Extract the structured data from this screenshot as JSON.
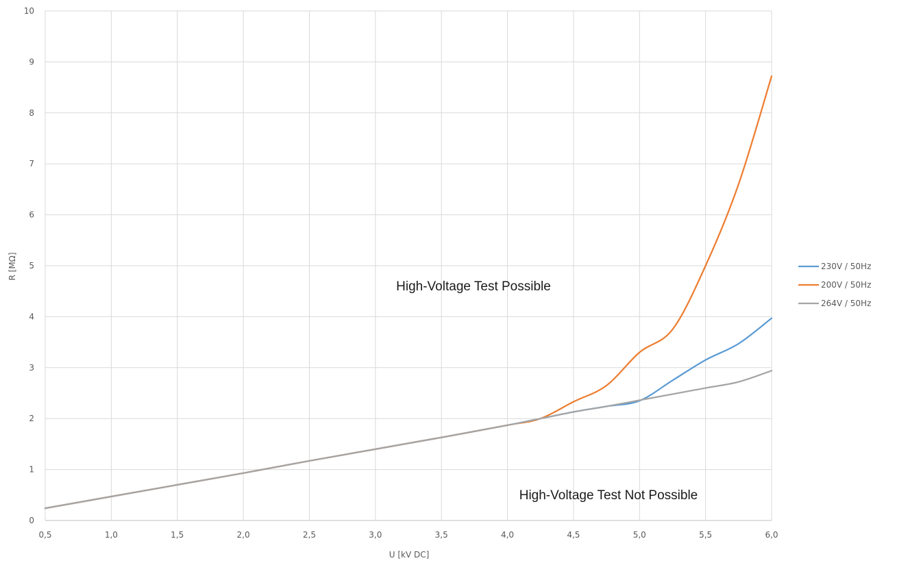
{
  "chart_data": {
    "type": "line",
    "xlabel": "U [kV DC]",
    "ylabel": "R [MΩ]",
    "xlim": [
      0.5,
      6.0
    ],
    "ylim": [
      0,
      10
    ],
    "x_ticks": [
      "0,5",
      "1,0",
      "1,5",
      "2,0",
      "2,5",
      "3,0",
      "3,5",
      "4,0",
      "4,5",
      "5,0",
      "5,5",
      "6,0"
    ],
    "y_ticks": [
      "0",
      "1",
      "2",
      "3",
      "4",
      "5",
      "6",
      "7",
      "8",
      "9",
      "10"
    ],
    "grid": true,
    "legend_position": "right",
    "annotations": {
      "above": "High-Voltage Test Possible",
      "below": "High-Voltage Test Not Possible"
    },
    "series": [
      {
        "name": "230V / 50Hz",
        "color": "#5B9BD5",
        "x": [
          0.5,
          1.0,
          1.5,
          2.0,
          2.5,
          3.0,
          3.5,
          4.0,
          4.25,
          4.5,
          4.75,
          5.0,
          5.25,
          5.5,
          5.75,
          6.0
        ],
        "y": [
          0.24,
          0.47,
          0.7,
          0.93,
          1.17,
          1.4,
          1.63,
          1.87,
          2.0,
          2.13,
          2.24,
          2.35,
          2.75,
          3.15,
          3.47,
          3.97
        ]
      },
      {
        "name": "200V / 50Hz",
        "color": "#ED7D31",
        "x": [
          0.5,
          1.0,
          1.5,
          2.0,
          2.5,
          3.0,
          3.5,
          4.0,
          4.25,
          4.5,
          4.75,
          5.0,
          5.25,
          5.5,
          5.75,
          6.0
        ],
        "y": [
          0.24,
          0.47,
          0.7,
          0.93,
          1.17,
          1.4,
          1.63,
          1.87,
          2.0,
          2.33,
          2.65,
          3.3,
          3.75,
          5.0,
          6.6,
          8.72
        ]
      },
      {
        "name": "264V / 50Hz",
        "color": "#A5A5A5",
        "x": [
          0.5,
          1.0,
          1.5,
          2.0,
          2.5,
          3.0,
          3.5,
          4.0,
          4.25,
          4.5,
          4.75,
          5.0,
          5.25,
          5.5,
          5.75,
          6.0
        ],
        "y": [
          0.24,
          0.47,
          0.7,
          0.93,
          1.17,
          1.4,
          1.63,
          1.87,
          2.0,
          2.13,
          2.24,
          2.36,
          2.48,
          2.6,
          2.72,
          2.94
        ]
      }
    ]
  }
}
